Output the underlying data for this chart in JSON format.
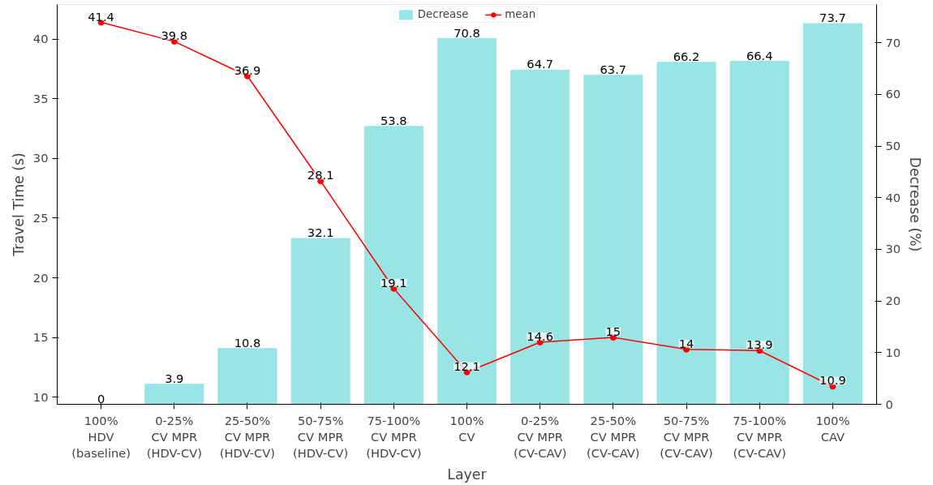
{
  "chart_data": {
    "type": "bar",
    "xlabel": "Layer",
    "ylabel": "Travel Time (s)",
    "y2label": "Decrease (%)",
    "categories": [
      "100%\nHDV\n(baseline)",
      "0-25%\nCV MPR\n(HDV-CV)",
      "25-50%\nCV MPR\n(HDV-CV)",
      "50-75%\nCV MPR\n(HDV-CV)",
      "75-100%\nCV MPR\n(HDV-CV)",
      "100%\nCV",
      "0-25%\nCV MPR\n(CV-CAV)",
      "25-50%\nCV MPR\n(CV-CAV)",
      "50-75%\nCV MPR\n(CV-CAV)",
      "75-100%\nCV MPR\n(CV-CAV)",
      "100%\nCAV"
    ],
    "series": [
      {
        "name": "Decrease",
        "axis": "y2",
        "color": "#99e5e5",
        "values": [
          0,
          3.9,
          10.8,
          32.1,
          53.8,
          70.8,
          64.7,
          63.7,
          66.2,
          66.4,
          73.7
        ]
      },
      {
        "name": "mean",
        "type": "line",
        "color": "#ff0000",
        "values": [
          41.4,
          39.8,
          36.9,
          28.1,
          19.1,
          12.1,
          14.6,
          15,
          14,
          13.9,
          10.9
        ]
      }
    ],
    "ylim": [
      9.4,
      42.9
    ],
    "yticks": [
      10,
      15,
      20,
      25,
      30,
      35,
      40
    ],
    "y2lim": [
      0,
      77.4
    ],
    "y2ticks": [
      0,
      10,
      20,
      30,
      40,
      50,
      60,
      70
    ],
    "data_labels": true,
    "legend": "top",
    "grid": false,
    "marker": "circle",
    "line_style": "solid"
  }
}
